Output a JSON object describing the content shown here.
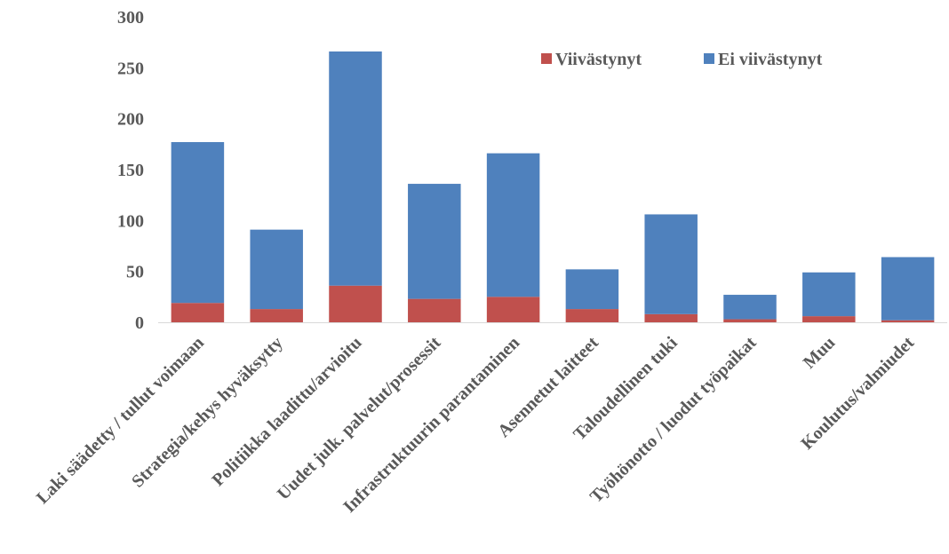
{
  "chart_data": {
    "type": "bar",
    "stacked": true,
    "categories": [
      "Laki säädetty / tullut voimaan",
      "Strategia/kehys hyväksytty",
      "Politiikka laadittu/arvioitu",
      "Uudet julk. palvelut/prosessit",
      "Infrastruktuurin parantaminen",
      "Asennetut laitteet",
      "Taloudellinen tuki",
      "Työhönotto / luodut työpaikat",
      "Muu",
      "Koulutus/valmiudet"
    ],
    "series": [
      {
        "name": "Viivästynyt",
        "color": "#c0504d",
        "values": [
          19,
          13,
          36,
          23,
          25,
          13,
          8,
          3,
          6,
          2
        ]
      },
      {
        "name": "Ei viivästynyt",
        "color": "#4f81bd",
        "values": [
          158,
          78,
          230,
          113,
          141,
          39,
          98,
          24,
          43,
          62
        ]
      }
    ],
    "ylim": [
      0,
      300
    ],
    "yticks": [
      "0",
      "50",
      "100",
      "150",
      "200",
      "250",
      "300"
    ],
    "grid": false,
    "legend": "top-right"
  }
}
